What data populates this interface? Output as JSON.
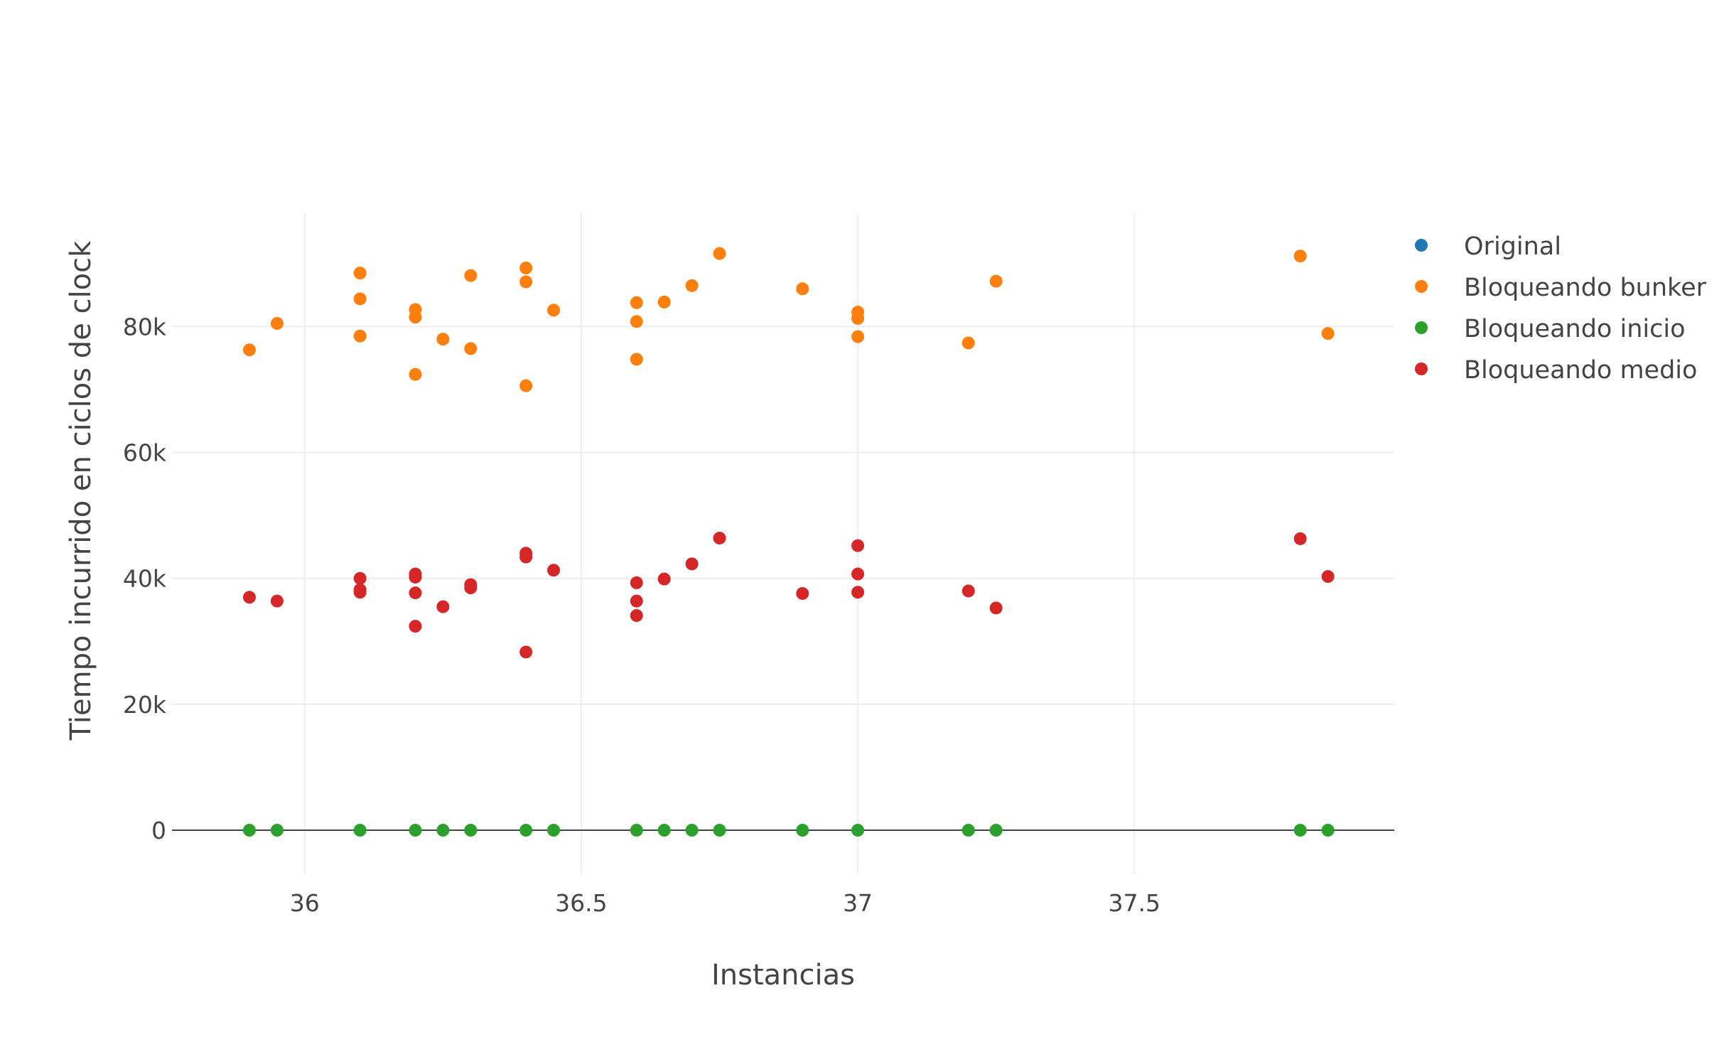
{
  "chart_data": {
    "type": "scatter",
    "title": "",
    "xlabel": "Instancias",
    "ylabel": "Tiempo incurrido en ciclos de clock",
    "xlim": [
      35.76,
      37.97
    ],
    "ylim": [
      -7000,
      98000
    ],
    "x_ticks": [
      {
        "value": 36,
        "label": "36"
      },
      {
        "value": 36.5,
        "label": "36.5"
      },
      {
        "value": 37,
        "label": "37"
      },
      {
        "value": 37.5,
        "label": "37.5"
      }
    ],
    "y_ticks": [
      {
        "value": 0,
        "label": "0"
      },
      {
        "value": 20000,
        "label": "20k"
      },
      {
        "value": 40000,
        "label": "40k"
      },
      {
        "value": 60000,
        "label": "60k"
      },
      {
        "value": 80000,
        "label": "80k"
      }
    ],
    "grid": true,
    "legend_position": "top-right",
    "series": [
      {
        "name": "Original",
        "color": "#1f77b4",
        "points": []
      },
      {
        "name": "Bloqueando bunker",
        "color": "#ff7f0e",
        "points": [
          [
            35.9,
            76300
          ],
          [
            35.95,
            80500
          ],
          [
            36.1,
            88500
          ],
          [
            36.1,
            84400
          ],
          [
            36.1,
            78500
          ],
          [
            36.2,
            82700
          ],
          [
            36.2,
            81500
          ],
          [
            36.2,
            72400
          ],
          [
            36.25,
            78000
          ],
          [
            36.3,
            88100
          ],
          [
            36.3,
            76500
          ],
          [
            36.4,
            89300
          ],
          [
            36.4,
            87100
          ],
          [
            36.4,
            70600
          ],
          [
            36.45,
            82600
          ],
          [
            36.6,
            83800
          ],
          [
            36.6,
            80800
          ],
          [
            36.6,
            74800
          ],
          [
            36.65,
            83900
          ],
          [
            36.7,
            86500
          ],
          [
            36.75,
            91600
          ],
          [
            36.9,
            86000
          ],
          [
            37.0,
            82300
          ],
          [
            37.0,
            81300
          ],
          [
            37.0,
            78400
          ],
          [
            37.2,
            77400
          ],
          [
            37.25,
            87200
          ],
          [
            37.8,
            91200
          ],
          [
            37.85,
            78900
          ]
        ]
      },
      {
        "name": "Bloqueando inicio",
        "color": "#2ca02c",
        "points": [
          [
            35.9,
            0
          ],
          [
            35.95,
            0
          ],
          [
            36.1,
            0
          ],
          [
            36.2,
            0
          ],
          [
            36.25,
            0
          ],
          [
            36.3,
            0
          ],
          [
            36.4,
            0
          ],
          [
            36.45,
            0
          ],
          [
            36.6,
            0
          ],
          [
            36.65,
            0
          ],
          [
            36.7,
            0
          ],
          [
            36.75,
            0
          ],
          [
            36.9,
            0
          ],
          [
            37.0,
            0
          ],
          [
            37.2,
            0
          ],
          [
            37.25,
            0
          ],
          [
            37.8,
            0
          ],
          [
            37.85,
            0
          ]
        ]
      },
      {
        "name": "Bloqueando medio",
        "color": "#d62728",
        "points": [
          [
            35.9,
            37000
          ],
          [
            35.95,
            36400
          ],
          [
            36.1,
            40000
          ],
          [
            36.1,
            38200
          ],
          [
            36.1,
            37800
          ],
          [
            36.2,
            40700
          ],
          [
            36.2,
            40200
          ],
          [
            36.2,
            37700
          ],
          [
            36.2,
            32400
          ],
          [
            36.25,
            35500
          ],
          [
            36.3,
            39000
          ],
          [
            36.3,
            38500
          ],
          [
            36.4,
            44000
          ],
          [
            36.4,
            43400
          ],
          [
            36.4,
            28300
          ],
          [
            36.45,
            41300
          ],
          [
            36.6,
            39300
          ],
          [
            36.6,
            36400
          ],
          [
            36.6,
            34100
          ],
          [
            36.65,
            39900
          ],
          [
            36.7,
            42300
          ],
          [
            36.75,
            46400
          ],
          [
            36.9,
            37600
          ],
          [
            37.0,
            45200
          ],
          [
            37.0,
            40700
          ],
          [
            37.0,
            37800
          ],
          [
            37.2,
            38000
          ],
          [
            37.25,
            35300
          ],
          [
            37.8,
            46300
          ],
          [
            37.85,
            40300
          ]
        ]
      }
    ]
  }
}
